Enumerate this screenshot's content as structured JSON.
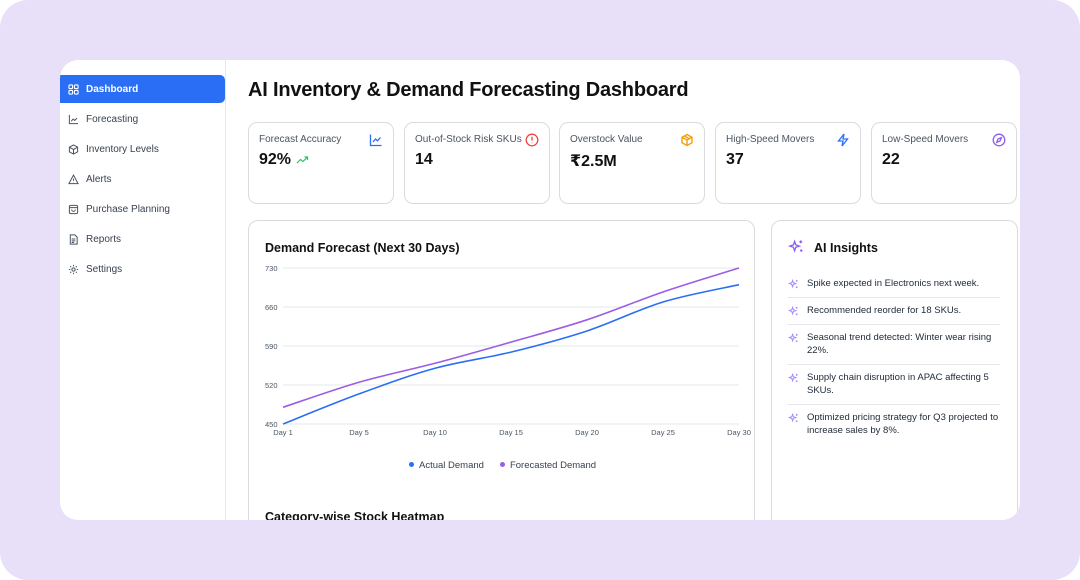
{
  "sidebar": {
    "items": [
      {
        "label": "Dashboard",
        "icon": "grid-icon",
        "active": true
      },
      {
        "label": "Forecasting",
        "icon": "chart-line-icon",
        "active": false
      },
      {
        "label": "Inventory Levels",
        "icon": "box-icon",
        "active": false
      },
      {
        "label": "Alerts",
        "icon": "warning-triangle-icon",
        "active": false
      },
      {
        "label": "Purchase Planning",
        "icon": "shopping-bag-icon",
        "active": false
      },
      {
        "label": "Reports",
        "icon": "document-icon",
        "active": false
      },
      {
        "label": "Settings",
        "icon": "gear-icon",
        "active": false
      }
    ]
  },
  "header": {
    "title": "AI Inventory & Demand Forecasting Dashboard"
  },
  "stats": [
    {
      "label": "Forecast Accuracy",
      "value": "92%",
      "icon": "chart-line-icon",
      "icon_color": "#2a6ef5",
      "trend": "trending-up-icon",
      "trend_color": "#22c55e"
    },
    {
      "label": "Out-of-Stock Risk SKUs",
      "value": "14",
      "icon": "alert-circle-icon",
      "icon_color": "#ef4444"
    },
    {
      "label": "Overstock Value",
      "value": "₹2.5M",
      "icon": "package-icon",
      "icon_color": "#f59e0b"
    },
    {
      "label": "High-Speed Movers",
      "value": "37",
      "icon": "lightning-icon",
      "icon_color": "#2a6ef5"
    },
    {
      "label": "Low-Speed Movers",
      "value": "22",
      "icon": "compass-icon",
      "icon_color": "#8b5cf6"
    }
  ],
  "chart_data": {
    "type": "line",
    "title": "Demand Forecast (Next 30 Days)",
    "x": [
      "Day 1",
      "Day 5",
      "Day 10",
      "Day 15",
      "Day 20",
      "Day 25",
      "Day 30"
    ],
    "series": [
      {
        "name": "Actual Demand",
        "color": "#2a6ef5",
        "values": [
          450,
          504,
          550,
          579,
          617,
          669,
          700
        ]
      },
      {
        "name": "Forecasted Demand",
        "color": "#9b5de5",
        "values": [
          480,
          525,
          559,
          597,
          637,
          687,
          730
        ]
      }
    ],
    "yticks": [
      450,
      520,
      590,
      660,
      730
    ],
    "ylim": [
      450,
      730
    ],
    "grid": true,
    "legend": "bottom-center",
    "xlabel": "",
    "ylabel": ""
  },
  "heatmap": {
    "title": "Category-wise Stock Heatmap"
  },
  "insights": {
    "title": "AI Insights",
    "items": [
      "Spike expected in Electronics next week.",
      "Recommended reorder for 18 SKUs.",
      "Seasonal trend detected: Winter wear rising 22%.",
      "Supply chain disruption in APAC affecting 5 SKUs.",
      "Optimized pricing strategy for Q3 projected to increase sales by 8%."
    ]
  }
}
